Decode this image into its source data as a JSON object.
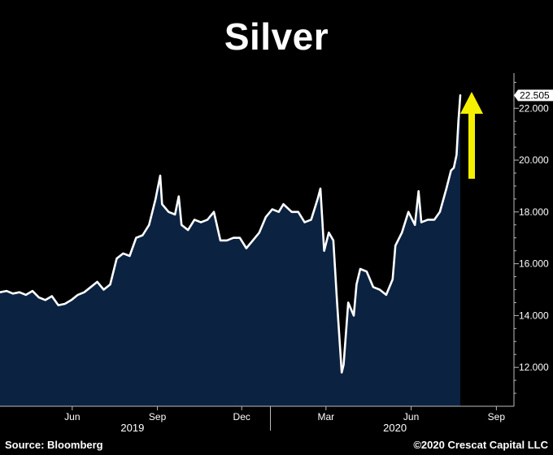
{
  "title": "Silver",
  "footer": {
    "source": "Source: Bloomberg",
    "copyright": "©2020 Crescat Capital LLC"
  },
  "colors": {
    "background": "#000000",
    "area_fill": "#0b2240",
    "line": "#ffffff",
    "arrow": "#f5ef00",
    "last_label_bg": "#ffffff"
  },
  "chart_data": {
    "type": "area",
    "title": "Silver",
    "ylim": [
      10.5,
      23.2
    ],
    "y_ticks": [
      "12.000",
      "14.000",
      "16.000",
      "18.000",
      "20.000",
      "22.000"
    ],
    "y_tick_values": [
      12,
      14,
      16,
      18,
      20,
      22
    ],
    "x_ticks": [
      "Jun",
      "Sep",
      "Dec",
      "Mar",
      "Jun",
      "Sep"
    ],
    "x_tick_dates": [
      "2019-06-01",
      "2019-09-01",
      "2019-12-01",
      "2020-03-01",
      "2020-06-01",
      "2020-09-01"
    ],
    "year_labels": [
      "2019",
      "2020"
    ],
    "xlim": [
      "2019-03-15",
      "2020-09-20"
    ],
    "last_value_label": "22.505",
    "annotation": "yellow up arrow",
    "series": [
      {
        "values": [
          [
            "2019-03-15",
            14.9
          ],
          [
            "2019-03-22",
            14.95
          ],
          [
            "2019-03-29",
            14.85
          ],
          [
            "2019-04-05",
            14.9
          ],
          [
            "2019-04-12",
            14.8
          ],
          [
            "2019-04-19",
            14.95
          ],
          [
            "2019-04-26",
            14.7
          ],
          [
            "2019-05-03",
            14.6
          ],
          [
            "2019-05-10",
            14.75
          ],
          [
            "2019-05-17",
            14.4
          ],
          [
            "2019-05-24",
            14.45
          ],
          [
            "2019-05-31",
            14.6
          ],
          [
            "2019-06-07",
            14.8
          ],
          [
            "2019-06-14",
            14.9
          ],
          [
            "2019-06-21",
            15.1
          ],
          [
            "2019-06-28",
            15.3
          ],
          [
            "2019-07-05",
            15.0
          ],
          [
            "2019-07-12",
            15.2
          ],
          [
            "2019-07-19",
            16.2
          ],
          [
            "2019-07-26",
            16.4
          ],
          [
            "2019-08-02",
            16.3
          ],
          [
            "2019-08-09",
            17.0
          ],
          [
            "2019-08-16",
            17.1
          ],
          [
            "2019-08-23",
            17.5
          ],
          [
            "2019-08-30",
            18.5
          ],
          [
            "2019-09-04",
            19.4
          ],
          [
            "2019-09-06",
            18.3
          ],
          [
            "2019-09-13",
            18.0
          ],
          [
            "2019-09-20",
            17.9
          ],
          [
            "2019-09-24",
            18.6
          ],
          [
            "2019-09-27",
            17.5
          ],
          [
            "2019-10-04",
            17.3
          ],
          [
            "2019-10-11",
            17.7
          ],
          [
            "2019-10-18",
            17.6
          ],
          [
            "2019-10-25",
            17.7
          ],
          [
            "2019-11-01",
            18.0
          ],
          [
            "2019-11-08",
            16.9
          ],
          [
            "2019-11-15",
            16.9
          ],
          [
            "2019-11-22",
            17.0
          ],
          [
            "2019-11-29",
            17.0
          ],
          [
            "2019-12-06",
            16.6
          ],
          [
            "2019-12-13",
            16.9
          ],
          [
            "2019-12-20",
            17.2
          ],
          [
            "2019-12-27",
            17.8
          ],
          [
            "2020-01-03",
            18.1
          ],
          [
            "2020-01-10",
            18.0
          ],
          [
            "2020-01-15",
            18.3
          ],
          [
            "2020-01-24",
            18.0
          ],
          [
            "2020-01-31",
            18.0
          ],
          [
            "2020-02-07",
            17.6
          ],
          [
            "2020-02-14",
            17.7
          ],
          [
            "2020-02-21",
            18.5
          ],
          [
            "2020-02-24",
            18.9
          ],
          [
            "2020-02-28",
            16.5
          ],
          [
            "2020-03-04",
            17.2
          ],
          [
            "2020-03-09",
            16.9
          ],
          [
            "2020-03-13",
            14.5
          ],
          [
            "2020-03-18",
            11.8
          ],
          [
            "2020-03-20",
            12.1
          ],
          [
            "2020-03-25",
            14.5
          ],
          [
            "2020-03-31",
            14.0
          ],
          [
            "2020-04-03",
            15.2
          ],
          [
            "2020-04-07",
            15.8
          ],
          [
            "2020-04-14",
            15.7
          ],
          [
            "2020-04-21",
            15.1
          ],
          [
            "2020-04-28",
            15.0
          ],
          [
            "2020-05-05",
            14.8
          ],
          [
            "2020-05-12",
            15.4
          ],
          [
            "2020-05-15",
            16.7
          ],
          [
            "2020-05-22",
            17.2
          ],
          [
            "2020-05-29",
            18.0
          ],
          [
            "2020-06-05",
            17.5
          ],
          [
            "2020-06-09",
            18.8
          ],
          [
            "2020-06-12",
            17.6
          ],
          [
            "2020-06-19",
            17.7
          ],
          [
            "2020-06-26",
            17.7
          ],
          [
            "2020-07-02",
            18.0
          ],
          [
            "2020-07-09",
            18.9
          ],
          [
            "2020-07-14",
            19.6
          ],
          [
            "2020-07-17",
            19.7
          ],
          [
            "2020-07-20",
            20.2
          ],
          [
            "2020-07-22",
            21.5
          ],
          [
            "2020-07-24",
            22.5
          ]
        ]
      }
    ]
  }
}
